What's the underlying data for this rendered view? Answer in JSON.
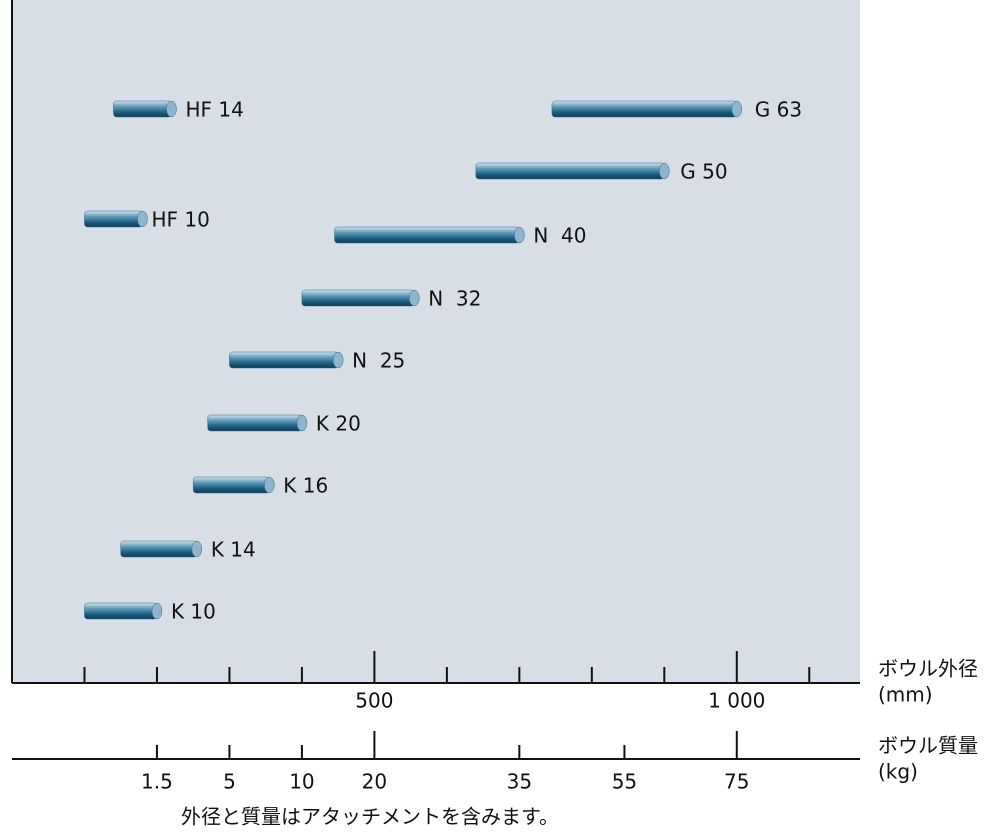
{
  "chart_data": {
    "type": "range-bar",
    "x_axis_label": [
      "ボウル外径",
      "(mm)"
    ],
    "xlim": [
      0,
      1170
    ],
    "xticks": [
      500,
      {
        "value": 1000,
        "label": "1 000"
      }
    ],
    "minor_xticks": [
      100,
      200,
      300,
      400,
      600,
      700,
      800,
      900,
      1100
    ],
    "mass_axis_label": [
      "ボウル質量",
      "(kg)"
    ],
    "mass_ticks": [
      1.5,
      5,
      10,
      20,
      35,
      55,
      75
    ],
    "mass_ticks_at_mm": [
      200,
      300,
      400,
      500,
      700,
      845,
      1000
    ],
    "color": "#2a6f90",
    "series": [
      {
        "name": "HF 14",
        "values": [
          140,
          220
        ]
      },
      {
        "name": "G 63",
        "values": [
          745,
          1000
        ]
      },
      {
        "name": "G 50",
        "values": [
          640,
          900
        ]
      },
      {
        "name": "HF 10",
        "values": [
          100,
          180
        ]
      },
      {
        "name": "N  40",
        "values": [
          445,
          700
        ]
      },
      {
        "name": "N  32",
        "values": [
          400,
          555
        ]
      },
      {
        "name": "N  25",
        "values": [
          300,
          450
        ]
      },
      {
        "name": "K 20",
        "values": [
          270,
          400
        ]
      },
      {
        "name": "K 16",
        "values": [
          250,
          355
        ]
      },
      {
        "name": "K 14",
        "values": [
          150,
          255
        ]
      },
      {
        "name": "K 10",
        "values": [
          100,
          200
        ]
      }
    ],
    "note": "外径と質量はアタッチメントを含みます。"
  }
}
